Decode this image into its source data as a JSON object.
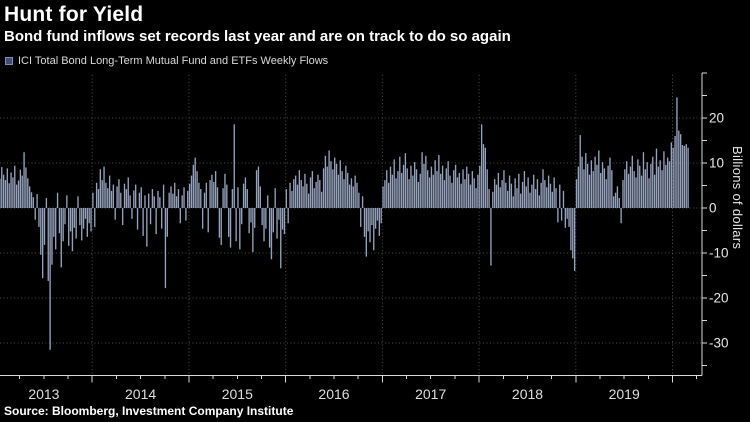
{
  "header": {
    "title": "Hunt for Yield",
    "subtitle": "Bond fund inflows set records last year and are on track to do so again"
  },
  "legend": {
    "label": "ICI Total Bond Long-Term Mutual Fund and ETFs Weekly Flows",
    "swatch_color": "#3e5078"
  },
  "source_line": "Source: Bloomberg, Investment Company Institute",
  "chart_data": {
    "type": "bar",
    "title": "Hunt for Yield",
    "subtitle": "Bond fund inflows set records last year and are on track to do so again",
    "ylabel": "Billions of dollars",
    "xlabel": "",
    "unit": "billions of dollars",
    "frequency": "weekly",
    "x_start": "2013-W01",
    "x_end": "2020-W09",
    "ylim": [
      -37,
      29
    ],
    "grid": true,
    "legend_position": "top-left",
    "bar_color": "#95a2bd",
    "y_ticks_labeled": [
      20,
      10,
      0,
      -10,
      -20,
      -30
    ],
    "y_minor_tick_step": 5,
    "x_year_labels": [
      "2013",
      "2014",
      "2015",
      "2016",
      "2017",
      "2018",
      "2019"
    ],
    "series": [
      {
        "name": "ICI Total Bond Long-Term Mutual Fund and ETFs Weekly Flows",
        "values_by_year": [
          {
            "year": "2013",
            "values": [
              5.8,
              8.2,
              6.5,
              9.1,
              7.4,
              6.2,
              8.8,
              5.5,
              7.9,
              6.8,
              9.4,
              5.2,
              6.1,
              8.5,
              7.2,
              12.4,
              9.0,
              6.6,
              4.8,
              3.5,
              2.4,
              -2.6,
              3.1,
              -4.2,
              -10.4,
              -15.6,
              -8.2,
              2.2,
              -16.2,
              -31.5,
              -12.6,
              -6.4,
              -9.2,
              3.4,
              -5.6,
              -13.2,
              -7.4,
              -3.6,
              2.8,
              -8.4,
              -5.2,
              -9.6,
              -4.4,
              -6.8,
              2.6,
              -3.8,
              -7.2,
              -4.6,
              -2.4,
              -6.4,
              -3.4,
              -5.2
            ]
          },
          {
            "year": "2014",
            "values": [
              3.4,
              -4.2,
              5.6,
              4.2,
              8.6,
              6.2,
              9.2,
              5.6,
              4.4,
              7.2,
              3.8,
              5.2,
              -2.6,
              4.8,
              6.4,
              3.4,
              -3.8,
              5.4,
              4.2,
              6.8,
              2.8,
              -2.4,
              3.9,
              5.2,
              -4.8,
              3.4,
              4.6,
              -6.2,
              2.8,
              -8.6,
              3.2,
              -3.6,
              4.2,
              2.6,
              -5.8,
              3.8,
              2.4,
              -4.6,
              5.2,
              -17.8,
              -6.4,
              3.4,
              4.8,
              3.2,
              5.6,
              2.6,
              4.2,
              -3.4,
              2.8,
              4.6,
              -2.8,
              3.8
            ]
          },
          {
            "year": "2015",
            "values": [
              5.4,
              7.2,
              9.6,
              11.2,
              8.2,
              5.6,
              4.2,
              -4.6,
              3.4,
              5.6,
              -5.4,
              6.2,
              7.4,
              5.8,
              8.2,
              4.6,
              -6.6,
              -8.2,
              4.4,
              7.6,
              5.2,
              -6.4,
              -8.8,
              4.2,
              18.6,
              -7.4,
              4.6,
              -9.2,
              -3.6,
              5.4,
              6.8,
              4.2,
              -5.6,
              -3.2,
              -9.8,
              -4.4,
              8.4,
              9.2,
              4.8,
              -3.8,
              -7.4,
              -4.6,
              2.8,
              -8.8,
              -11.4,
              -5.4,
              4.4,
              -6.8,
              -2.6,
              -13.4,
              -4.8,
              -5.8
            ]
          },
          {
            "year": "2016",
            "values": [
              4.2,
              -3.4,
              5.6,
              3.8,
              6.4,
              7.2,
              5.2,
              8.4,
              6.2,
              4.8,
              7.6,
              5.4,
              3.2,
              6.8,
              8.2,
              4.4,
              5.8,
              7.4,
              6.2,
              3.6,
              8.8,
              11.6,
              9.2,
              12.8,
              10.4,
              8.6,
              11.2,
              9.8,
              7.4,
              10.6,
              8.2,
              6.4,
              9.4,
              7.8,
              5.2,
              6.6,
              4.8,
              7.2,
              5.6,
              3.4,
              -4.2,
              2.6,
              -6.4,
              -10.8,
              -5.2,
              -7.6,
              -3.8,
              -9.4,
              -4.6,
              -2.8,
              -6.2,
              -3.4
            ]
          },
          {
            "year": "2017",
            "values": [
              4.8,
              6.2,
              8.4,
              5.6,
              9.2,
              7.4,
              10.8,
              6.6,
              8.2,
              11.4,
              7.8,
              9.6,
              12.2,
              8.8,
              6.4,
              9.4,
              7.2,
              10.2,
              8.6,
              5.8,
              7.6,
              12.4,
              9.8,
              11.6,
              8.4,
              6.8,
              9.2,
              7.4,
              10.6,
              8.2,
              11.8,
              7.6,
              9.4,
              6.2,
              8.8,
              10.4,
              7.2,
              5.6,
              8.4,
              9.6,
              6.8,
              7.8,
              5.4,
              8.6,
              6.4,
              9.2,
              7.6,
              5.2,
              8.2,
              6.6,
              4.4,
              7.4
            ]
          },
          {
            "year": "2018",
            "values": [
              9.4,
              18.6,
              14.2,
              13.4,
              8.6,
              4.2,
              -12.8,
              3.6,
              6.4,
              5.2,
              7.8,
              4.6,
              6.2,
              8.4,
              5.6,
              3.8,
              7.2,
              5.4,
              2.6,
              6.6,
              4.4,
              7.6,
              3.2,
              5.8,
              8.2,
              4.8,
              6.8,
              3.4,
              5.2,
              7.4,
              4.2,
              6.4,
              2.8,
              5.6,
              8.6,
              6.2,
              4.6,
              7.2,
              5.4,
              3.6,
              6.8,
              4.4,
              -3.2,
              5.2,
              -2.8,
              3.8,
              -4.4,
              -2.4,
              -4.2,
              -9.4,
              -11.2,
              -14.0
            ]
          },
          {
            "year": "2019",
            "values": [
              6.4,
              9.2,
              16.2,
              11.4,
              8.6,
              12.2,
              9.8,
              7.4,
              10.6,
              8.2,
              11.4,
              9.6,
              12.8,
              7.8,
              10.2,
              8.8,
              6.4,
              9.4,
              11.2,
              8.4,
              2.6,
              3.4,
              4.8,
              2.2,
              -3.4,
              6.2,
              8.6,
              10.4,
              7.6,
              9.2,
              11.6,
              8.2,
              6.8,
              10.8,
              9.4,
              7.2,
              12.4,
              8.6,
              10.2,
              6.6,
              9.8,
              11.4,
              7.4,
              13.2,
              9.2,
              10.6,
              8.4,
              12.6,
              9.6,
              11.2,
              10.4,
              14.6
            ]
          },
          {
            "year": "2020",
            "values": [
              13.4,
              16.0,
              24.6,
              17.2,
              16.4,
              14.0,
              13.8,
              14.2,
              13.4
            ]
          }
        ]
      }
    ]
  }
}
